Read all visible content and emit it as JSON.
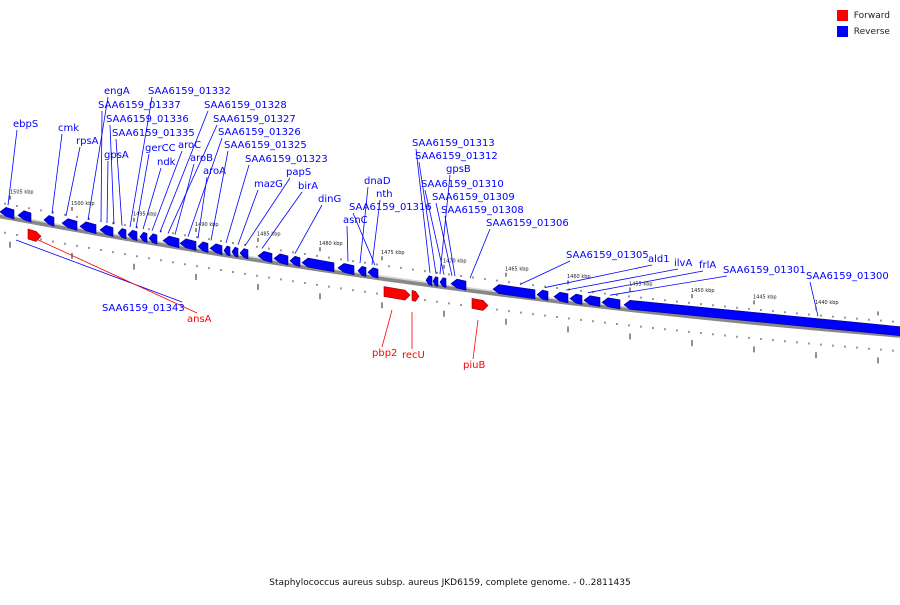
{
  "legend": {
    "forward": {
      "label": "Forward",
      "color": "#ff0000"
    },
    "reverse": {
      "label": "Reverse",
      "color": "#0000ff"
    }
  },
  "caption": "Staphylococcus aureus subsp. aureus JKD6159, complete genome. - 0..2811435",
  "ticks": [
    "1505 kbp",
    "1500 kbp",
    "1495 kbp",
    "1490 kbp",
    "1485 kbp",
    "1480 kbp",
    "1475 kbp",
    "1470 kbp",
    "1465 kbp",
    "1460 kbp",
    "1455 kbp",
    "1450 kbp",
    "1445 kbp",
    "1440 kbp"
  ],
  "reverse_genes": [
    "ebpS",
    "cmk",
    "rpsA",
    "engA",
    "SAA6159_01337",
    "SAA6159_01336",
    "gpsA",
    "SAA6159_01335",
    "SAA6159_01332",
    "gerCC",
    "ndk",
    "aroC",
    "SAA6159_01328",
    "SAA6159_01327",
    "aroB",
    "SAA6159_01326",
    "aroA",
    "SAA6159_01325",
    "SAA6159_01323",
    "mazG",
    "papS",
    "birA",
    "dinG",
    "asnC",
    "dnaD",
    "nth",
    "SAA6159_01316",
    "SAA6159_01313",
    "SAA6159_01312",
    "gpsB",
    "SAA6159_01310",
    "SAA6159_01309",
    "SAA6159_01308",
    "SAA6159_01306",
    "SAA6159_01305",
    "ald1",
    "ilvA",
    "frlA",
    "SAA6159_01301",
    "SAA6159_01300"
  ],
  "forward_genes": [
    "SAA6159_01343",
    "ansA",
    "pbp2",
    "recU",
    "piuB"
  ]
}
